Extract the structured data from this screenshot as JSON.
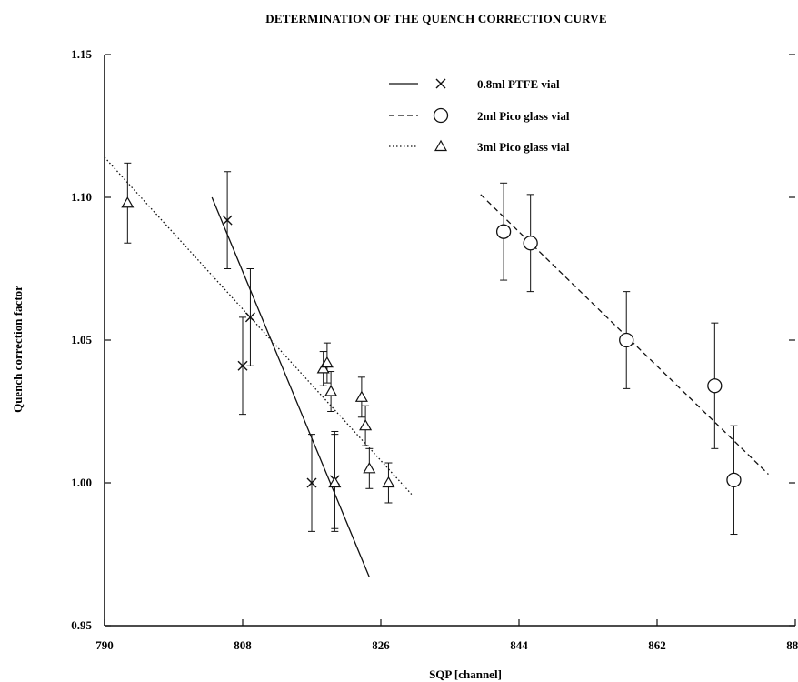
{
  "chart_data": {
    "type": "scatter",
    "title": "DETERMINATION OF THE QUENCH CORRECTION CURVE",
    "xlabel": "SQP [channel]",
    "ylabel": "Quench correction factor",
    "xlim": [
      790,
      880
    ],
    "ylim": [
      0.95,
      1.15
    ],
    "xticks": [
      790,
      808,
      826,
      844,
      862,
      880
    ],
    "xtick_labels": [
      "790",
      "808",
      "826",
      "844",
      "862",
      "880"
    ],
    "yticks": [
      0.95,
      1.0,
      1.05,
      1.1,
      1.15
    ],
    "ytick_labels": [
      "0.95",
      "1.00",
      "1.05",
      "1.10",
      "1.15"
    ],
    "grid": false,
    "legend_position": "top-right",
    "series": [
      {
        "name": "0.8ml PTFE vial",
        "marker": "x",
        "line_style": "solid",
        "points": [
          {
            "x": 806,
            "y": 1.092,
            "err": 0.017
          },
          {
            "x": 808,
            "y": 1.041,
            "err": 0.017
          },
          {
            "x": 809,
            "y": 1.058,
            "err": 0.017
          },
          {
            "x": 817,
            "y": 1.0,
            "err": 0.017
          },
          {
            "x": 820,
            "y": 1.001,
            "err": 0.017
          }
        ],
        "fit": {
          "x": [
            804,
            824.5
          ],
          "y": [
            1.1,
            0.967
          ]
        }
      },
      {
        "name": "2ml Pico glass vial",
        "marker": "circle",
        "line_style": "dashed",
        "points": [
          {
            "x": 842,
            "y": 1.088,
            "err": 0.017
          },
          {
            "x": 845.5,
            "y": 1.084,
            "err": 0.017
          },
          {
            "x": 858,
            "y": 1.05,
            "err": 0.017
          },
          {
            "x": 869.5,
            "y": 1.034,
            "err": 0.022
          },
          {
            "x": 872,
            "y": 1.001,
            "err": 0.019
          }
        ],
        "fit": {
          "x": [
            839,
            876.5
          ],
          "y": [
            1.101,
            1.003
          ]
        }
      },
      {
        "name": "3ml Pico glass vial",
        "marker": "triangle",
        "line_style": "dotted",
        "points": [
          {
            "x": 793,
            "y": 1.098,
            "err": 0.014
          },
          {
            "x": 818.5,
            "y": 1.04,
            "err": 0.006
          },
          {
            "x": 819,
            "y": 1.042,
            "err": 0.007
          },
          {
            "x": 819.5,
            "y": 1.032,
            "err": 0.007
          },
          {
            "x": 820,
            "y": 1.0,
            "err": 0.017
          },
          {
            "x": 823.5,
            "y": 1.03,
            "err": 0.007
          },
          {
            "x": 824,
            "y": 1.02,
            "err": 0.007
          },
          {
            "x": 824.5,
            "y": 1.005,
            "err": 0.007
          },
          {
            "x": 827,
            "y": 1.0,
            "err": 0.007
          }
        ],
        "fit": {
          "x": [
            790,
            830
          ],
          "y": [
            1.114,
            0.996
          ]
        }
      }
    ]
  }
}
